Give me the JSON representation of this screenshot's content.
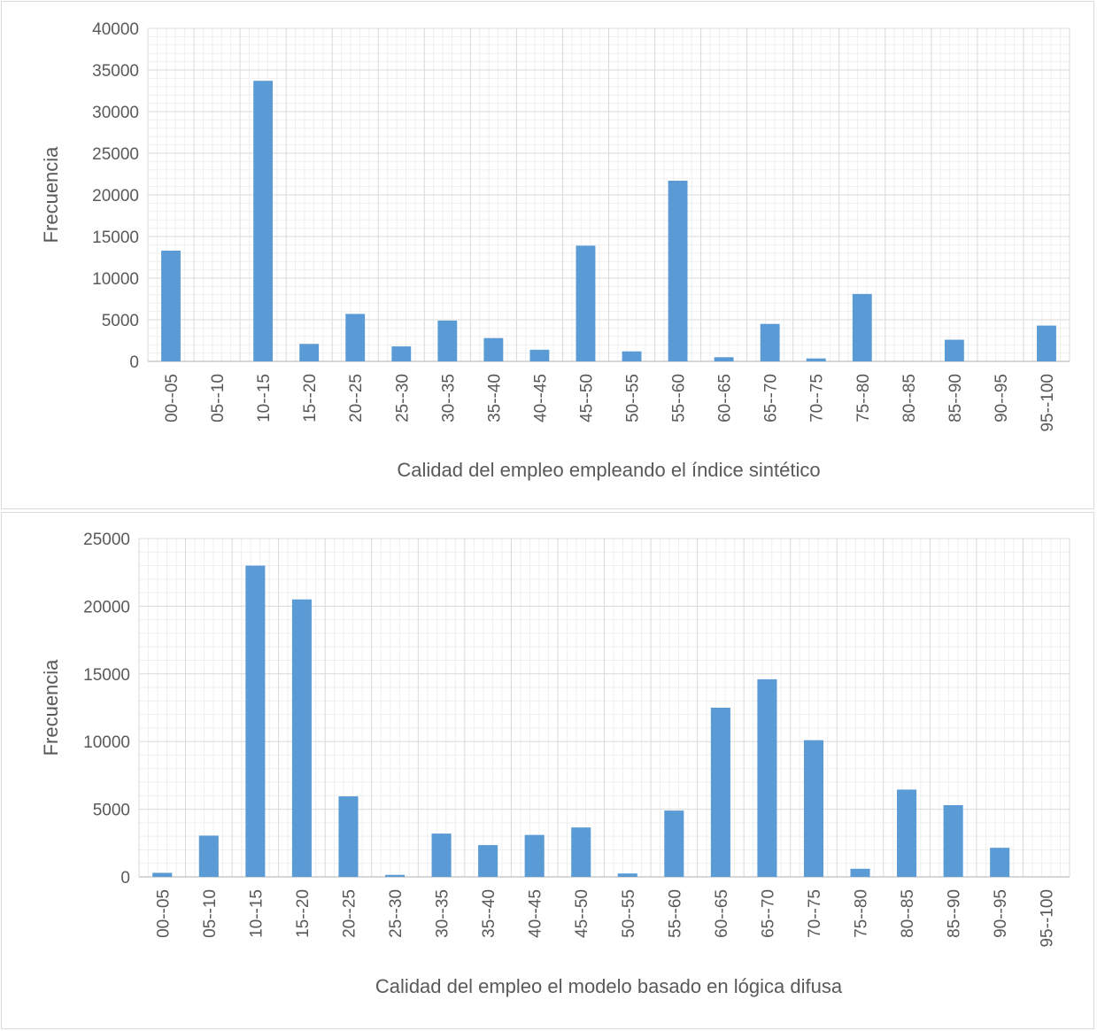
{
  "chart_data": [
    {
      "type": "bar",
      "categories": [
        "00--05",
        "05--10",
        "10--15",
        "15--20",
        "20--25",
        "25--30",
        "30--35",
        "35--40",
        "40--45",
        "45--50",
        "50--55",
        "55--60",
        "60--65",
        "65--70",
        "70--75",
        "75--80",
        "80--85",
        "85--90",
        "90--95",
        "95--100"
      ],
      "series": [
        {
          "values": [
            13300,
            0,
            33700,
            2100,
            5700,
            1800,
            4900,
            2800,
            1400,
            13900,
            1200,
            21700,
            500,
            4500,
            350,
            8100,
            0,
            2600,
            0,
            4300
          ]
        }
      ],
      "xlabel": "Calidad del empleo empleando el índice sintético",
      "ylabel": "Frecuencia",
      "ylim": [
        0,
        40000
      ],
      "yticks": [
        0,
        5000,
        10000,
        15000,
        20000,
        25000,
        30000,
        35000,
        40000
      ],
      "grid": true,
      "bar_color": "#5b9bd5"
    },
    {
      "type": "bar",
      "categories": [
        "00--05",
        "05--10",
        "10--15",
        "15--20",
        "20--25",
        "25--30",
        "30--35",
        "35--40",
        "40--45",
        "45--50",
        "50--55",
        "55--60",
        "60--65",
        "65--70",
        "70--75",
        "75--80",
        "80--85",
        "85--90",
        "90--95",
        "95--100"
      ],
      "series": [
        {
          "values": [
            300,
            3050,
            23000,
            20500,
            5950,
            150,
            3200,
            2350,
            3100,
            3650,
            250,
            4900,
            12500,
            14600,
            10100,
            600,
            6450,
            5300,
            2150,
            0
          ]
        }
      ],
      "xlabel": "Calidad del empleo el modelo basado en lógica difusa",
      "ylabel": "Frecuencia",
      "ylim": [
        0,
        25000
      ],
      "yticks": [
        0,
        5000,
        10000,
        15000,
        20000,
        25000
      ],
      "grid": true,
      "bar_color": "#5b9bd5"
    }
  ]
}
